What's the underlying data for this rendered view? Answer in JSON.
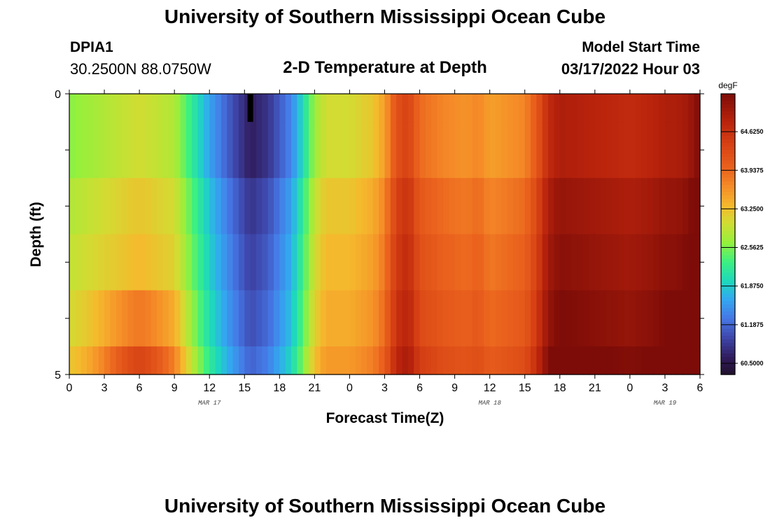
{
  "header": {
    "title": "University of Southern Mississippi Ocean Cube",
    "station": "DPIA1",
    "coordinates": "30.2500N  88.0750W",
    "subtitle": "2-D Temperature at Depth",
    "model_start_label": "Model Start Time",
    "model_start_value": "03/17/2022 Hour 03"
  },
  "footer": {
    "title": "University of Southern Mississippi Ocean Cube"
  },
  "chart_data": {
    "type": "heatmap",
    "title": "2-D Temperature at Depth",
    "xlabel": "Forecast Time(Z)",
    "ylabel": "Depth (ft)",
    "colorbar_unit": "degF",
    "colorbar_ticks": [
      "60.5000",
      "61.1875",
      "61.8750",
      "62.5625",
      "63.2500",
      "63.9375",
      "64.6250"
    ],
    "colorbar_range": [
      60.3,
      65.3
    ],
    "x_tick_labels": [
      "0",
      "3",
      "6",
      "9",
      "12",
      "15",
      "18",
      "21",
      "0",
      "3",
      "6",
      "9",
      "12",
      "15",
      "18",
      "21",
      "0",
      "3",
      "6"
    ],
    "x_range_hours": [
      0,
      54
    ],
    "date_labels": [
      {
        "label": "MAR 17",
        "hour": 12
      },
      {
        "label": "MAR 18",
        "hour": 36
      },
      {
        "label": "MAR 19",
        "hour": 51
      }
    ],
    "y_tick_labels": [
      "0",
      "5"
    ],
    "y_range": [
      0,
      5
    ],
    "depth_rows_ft": [
      0,
      1,
      2,
      3,
      4,
      5
    ],
    "surface_profile": {
      "hours": [
        0,
        3,
        6,
        9,
        10,
        12,
        14,
        15.5,
        17,
        19,
        20,
        21,
        22,
        24,
        26,
        27,
        28,
        29,
        30,
        32,
        34,
        35,
        36,
        39,
        40,
        41,
        42,
        45,
        48,
        50,
        51,
        52,
        53,
        54
      ],
      "temps": [
        62.6,
        62.8,
        63.0,
        62.8,
        62.4,
        61.6,
        61.0,
        60.6,
        60.8,
        61.4,
        62.0,
        62.7,
        63.0,
        63.0,
        63.2,
        63.5,
        64.2,
        64.4,
        63.9,
        63.7,
        63.6,
        63.7,
        63.5,
        63.7,
        64.1,
        64.7,
        64.9,
        64.8,
        64.7,
        64.8,
        64.9,
        64.9,
        65.0,
        65.3
      ]
    },
    "depth_offsets_degF": [
      0.0,
      0.0,
      0.2,
      0.3,
      0.4,
      0.55
    ],
    "bottom_warm_bump": {
      "center_hour": 6,
      "width_hours": 3.5,
      "amplitude_degF": 0.8
    },
    "highlight_column": {
      "hour": 15.5,
      "depth_from": 0,
      "depth_to": 0.5
    }
  }
}
